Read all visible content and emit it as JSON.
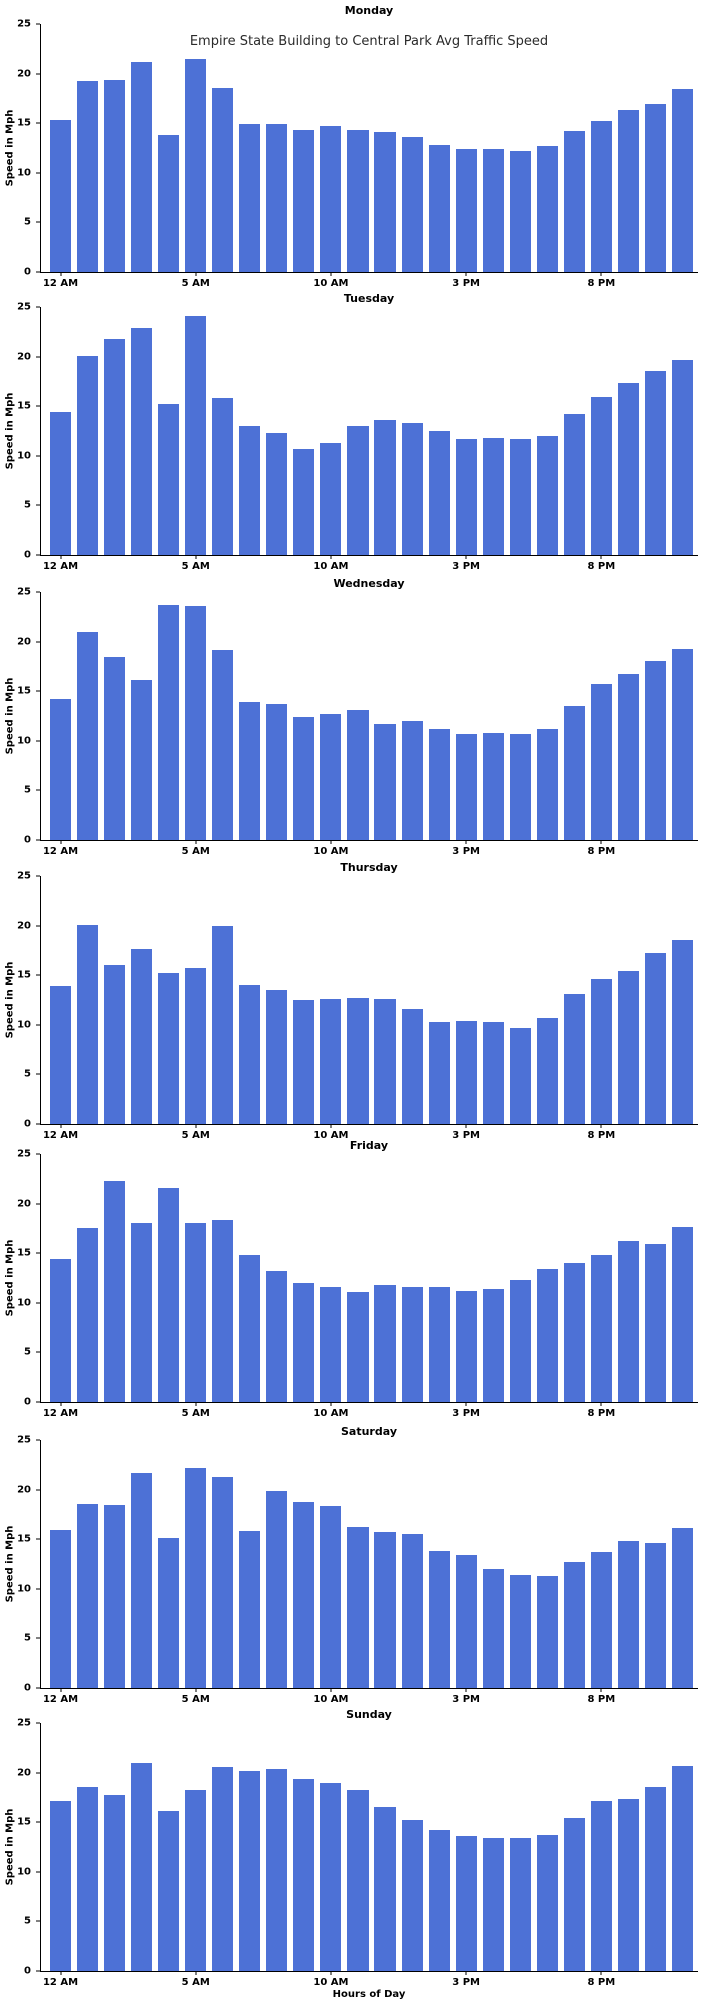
{
  "figure": {
    "suptitle": "Empire State Building to Central Park Avg Traffic Speed",
    "xlabel": "Hours of Day",
    "ylabel": "Speed in Mph",
    "bar_color": "#4d71d6",
    "axis_color": "#000000",
    "text_color": "#000000",
    "background_color": "#ffffff"
  },
  "axes": {
    "ylim": [
      0,
      25
    ],
    "yticks": [
      0,
      5,
      10,
      15,
      20,
      25
    ],
    "xticks": [
      {
        "hour": 0,
        "label": "12 AM"
      },
      {
        "hour": 5,
        "label": "5 AM"
      },
      {
        "hour": 10,
        "label": "10 AM"
      },
      {
        "hour": 15,
        "label": "3 PM"
      },
      {
        "hour": 20,
        "label": "8 PM"
      }
    ],
    "grid": false,
    "legend": "none"
  },
  "categories": [
    "12 AM",
    "1 AM",
    "2 AM",
    "3 AM",
    "4 AM",
    "5 AM",
    "6 AM",
    "7 AM",
    "8 AM",
    "9 AM",
    "10 AM",
    "11 AM",
    "12 PM",
    "1 PM",
    "2 PM",
    "3 PM",
    "4 PM",
    "5 PM",
    "6 PM",
    "7 PM",
    "8 PM",
    "9 PM",
    "10 PM",
    "11 PM"
  ],
  "chart_data": [
    {
      "type": "bar",
      "title": "Monday",
      "ylabel": "Speed in Mph",
      "ylim": [
        0,
        25
      ],
      "values": [
        15.3,
        19.3,
        19.4,
        21.2,
        13.8,
        21.5,
        18.5,
        14.9,
        14.9,
        14.3,
        14.7,
        14.3,
        14.1,
        13.6,
        12.8,
        12.4,
        12.4,
        12.2,
        12.7,
        14.2,
        15.2,
        16.3,
        16.9,
        18.4
      ]
    },
    {
      "type": "bar",
      "title": "Tuesday",
      "ylabel": "Speed in Mph",
      "ylim": [
        0,
        25
      ],
      "values": [
        14.4,
        20.1,
        21.8,
        22.9,
        15.2,
        24.1,
        15.8,
        13.0,
        12.3,
        10.7,
        11.3,
        13.0,
        13.6,
        13.3,
        12.5,
        11.7,
        11.8,
        11.7,
        12.0,
        14.2,
        15.9,
        17.3,
        18.5,
        19.7
      ]
    },
    {
      "type": "bar",
      "title": "Wednesday",
      "ylabel": "Speed in Mph",
      "ylim": [
        0,
        25
      ],
      "values": [
        14.2,
        21.0,
        18.4,
        16.1,
        23.7,
        23.6,
        19.2,
        13.9,
        13.7,
        12.4,
        12.7,
        13.1,
        11.7,
        12.0,
        11.2,
        10.7,
        10.8,
        10.7,
        11.2,
        13.5,
        15.7,
        16.7,
        18.0,
        19.3
      ]
    },
    {
      "type": "bar",
      "title": "Thursday",
      "ylabel": "Speed in Mph",
      "ylim": [
        0,
        25
      ],
      "values": [
        13.9,
        20.1,
        16.0,
        17.6,
        15.2,
        15.7,
        20.0,
        14.0,
        13.5,
        12.5,
        12.6,
        12.7,
        12.6,
        11.6,
        10.3,
        10.4,
        10.3,
        9.7,
        10.7,
        13.1,
        14.6,
        15.4,
        17.2,
        18.6
      ]
    },
    {
      "type": "bar",
      "title": "Friday",
      "ylabel": "Speed in Mph",
      "ylim": [
        0,
        25
      ],
      "values": [
        14.4,
        17.5,
        22.3,
        18.0,
        21.6,
        18.0,
        18.3,
        14.8,
        13.2,
        12.0,
        11.6,
        11.1,
        11.8,
        11.6,
        11.6,
        11.2,
        11.4,
        12.3,
        13.4,
        14.0,
        14.8,
        16.2,
        15.9,
        17.6
      ]
    },
    {
      "type": "bar",
      "title": "Saturday",
      "ylabel": "Speed in Mph",
      "ylim": [
        0,
        25
      ],
      "values": [
        15.9,
        18.6,
        18.4,
        21.7,
        15.1,
        22.2,
        21.3,
        15.8,
        19.9,
        18.8,
        18.3,
        16.2,
        15.7,
        15.5,
        13.8,
        13.4,
        12.0,
        11.4,
        11.3,
        12.7,
        13.7,
        14.8,
        14.6,
        16.1
      ]
    },
    {
      "type": "bar",
      "title": "Sunday",
      "ylabel": "Speed in Mph",
      "ylim": [
        0,
        25
      ],
      "values": [
        17.1,
        18.6,
        17.7,
        21.0,
        16.1,
        18.2,
        20.6,
        20.2,
        20.4,
        19.4,
        19.0,
        18.2,
        16.5,
        15.2,
        14.2,
        13.6,
        13.4,
        13.4,
        13.7,
        15.4,
        17.1,
        17.3,
        18.6,
        20.7
      ]
    }
  ]
}
